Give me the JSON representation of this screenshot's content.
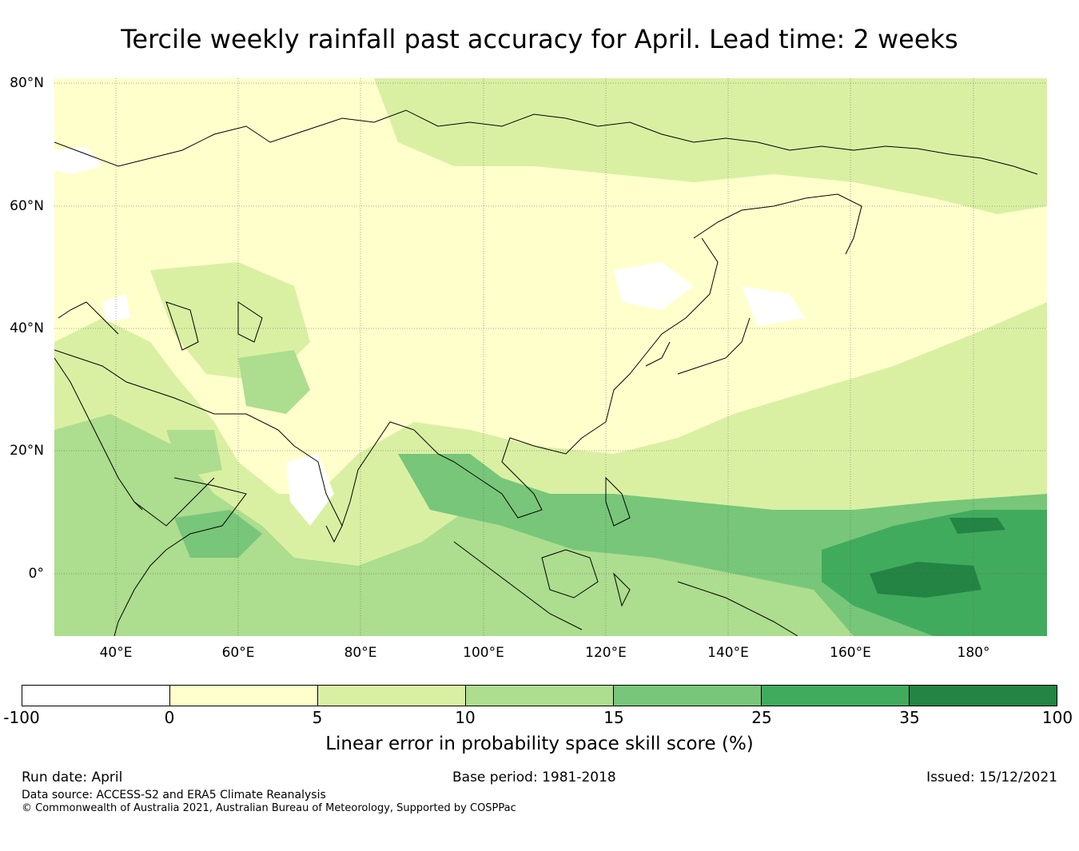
{
  "title": "Tercile weekly rainfall past accuracy for April. Lead time: 2 weeks",
  "map": {
    "lat_labels": [
      "80°N",
      "60°N",
      "40°N",
      "20°N",
      "0°"
    ],
    "lon_labels": [
      "40°E",
      "60°E",
      "80°E",
      "100°E",
      "120°E",
      "140°E",
      "160°E",
      "180°"
    ]
  },
  "colorbar": {
    "ticks": [
      "-100",
      "0",
      "5",
      "10",
      "15",
      "25",
      "35",
      "100"
    ],
    "colors": [
      "#ffffff",
      "#ffffcc",
      "#d9f0a3",
      "#addd8e",
      "#78c679",
      "#41ab5d",
      "#238443"
    ],
    "label": "Linear error in probability space skill score (%)"
  },
  "footer": {
    "run_date": "Run date: April",
    "base_period": "Base period: 1981-2018",
    "issued": "Issued: 15/12/2021",
    "data_source": "Data source: ACCESS-S2 and ERA5 Climate Reanalysis",
    "copyright": "© Commonwealth of Australia 2021, Australian Bureau of Meteorology, Supported by COSPPac"
  }
}
